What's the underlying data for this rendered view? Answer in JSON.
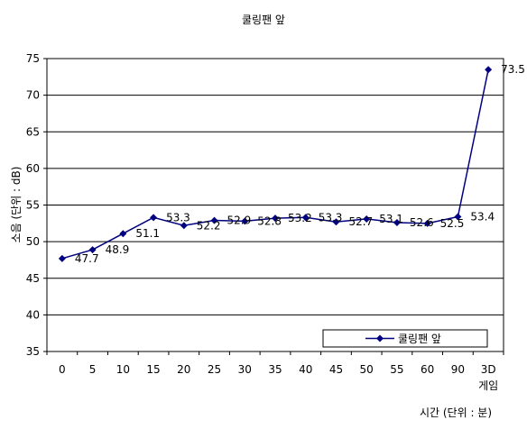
{
  "chart_data": {
    "type": "line",
    "title": "쿨링팬 앞",
    "xlabel": "시간 (단위 : 분)",
    "ylabel": "소음 (단위 : dB)",
    "categories": [
      "0",
      "5",
      "10",
      "15",
      "20",
      "25",
      "30",
      "35",
      "40",
      "45",
      "50",
      "55",
      "60",
      "90",
      "3D\n게임"
    ],
    "series": [
      {
        "name": "쿨링팬 앞",
        "values": [
          47.7,
          48.9,
          51.1,
          53.3,
          52.2,
          52.9,
          52.8,
          53.2,
          53.3,
          52.7,
          53.1,
          52.6,
          52.5,
          53.4,
          73.5
        ],
        "labels": [
          "47.7",
          "48.9",
          "51.1",
          "53.3",
          "52.2",
          "52.9",
          "52.8",
          "53.2",
          "53.3",
          "52.7",
          "53.1",
          "52.6",
          "52.5",
          "53.4",
          "73.5"
        ]
      }
    ],
    "ylim": [
      35,
      75
    ],
    "yticks": [
      35,
      40,
      45,
      50,
      55,
      60,
      65,
      70,
      75
    ],
    "grid": true,
    "legend": "bottom-right",
    "colors": {
      "series": "#000080",
      "grid": "#000000",
      "plot_bg": "#ffffff"
    }
  }
}
